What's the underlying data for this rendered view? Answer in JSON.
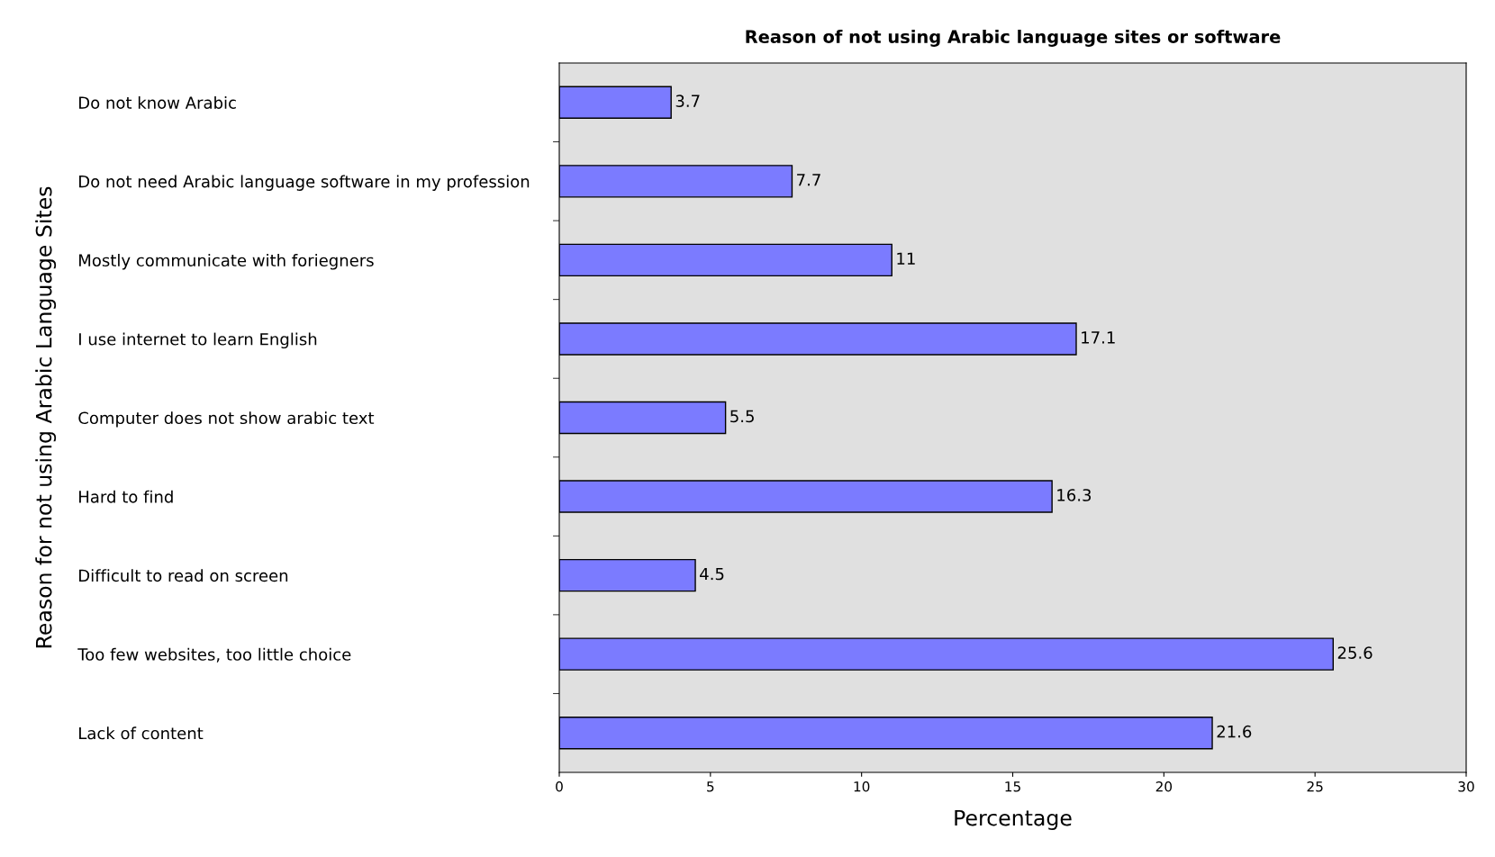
{
  "chart_data": {
    "type": "bar",
    "orientation": "horizontal",
    "title": "Reason of not using Arabic language sites or software",
    "xlabel": "Percentage",
    "ylabel": "Reason for not using Arabic Language Sites",
    "categories": [
      "Do not know Arabic",
      "Do not need Arabic language software in my profession",
      "Mostly communicate with foriegners",
      "I use internet to learn English",
      "Computer does not show arabic text",
      "Hard to find",
      "Difficult to read on screen",
      "Too few websites, too little choice",
      "Lack of content"
    ],
    "values": [
      3.7,
      7.7,
      11,
      17.1,
      5.5,
      16.3,
      4.5,
      25.6,
      21.6
    ],
    "color": "#7b7bff",
    "xlim": [
      0,
      30
    ],
    "xticks": [
      0,
      5,
      10,
      15,
      20,
      25,
      30
    ],
    "data_labels": true,
    "grid": false,
    "legend": false
  }
}
